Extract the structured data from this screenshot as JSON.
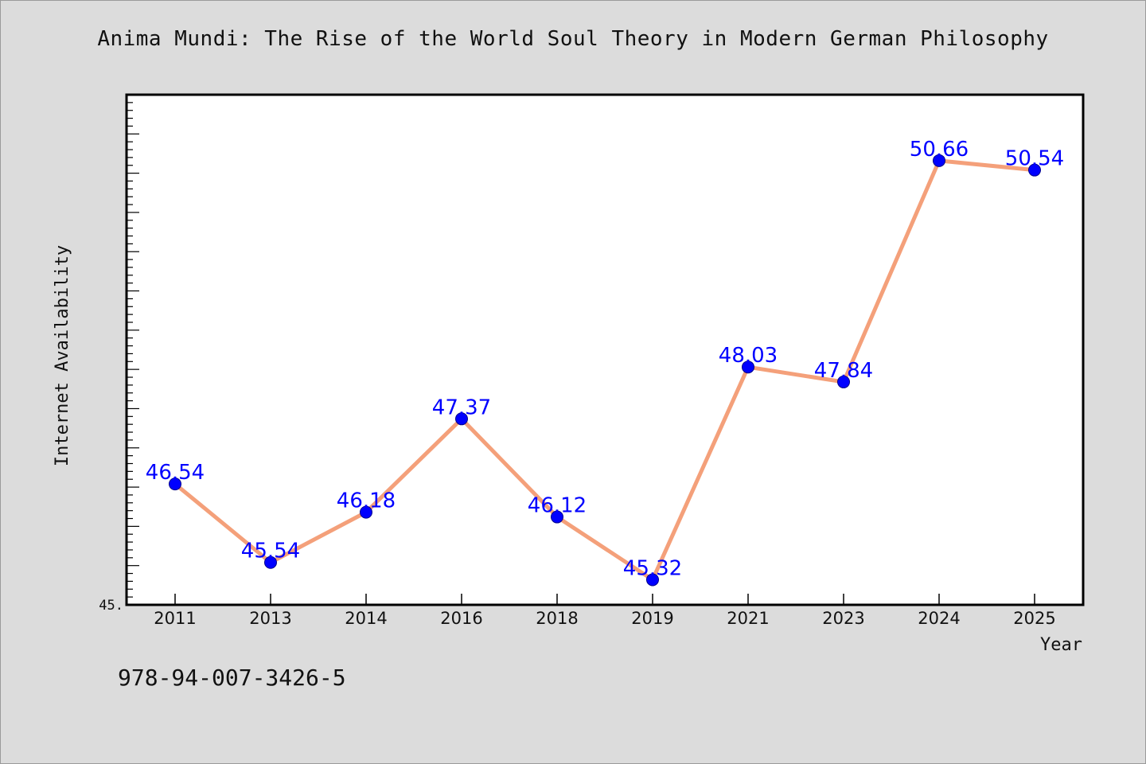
{
  "chart_data": {
    "type": "line",
    "title": "Anima Mundi: The Rise of the World Soul Theory in Modern German Philosophy",
    "xlabel": "Year",
    "ylabel": "Internet Availability",
    "categories": [
      "2011",
      "2013",
      "2014",
      "2016",
      "2018",
      "2019",
      "2021",
      "2023",
      "2024",
      "2025"
    ],
    "values": [
      46.54,
      45.54,
      46.18,
      47.37,
      46.12,
      45.32,
      48.03,
      47.84,
      50.66,
      50.54
    ],
    "data_labels": [
      "46.54",
      "45.54",
      "46.18",
      "47.37",
      "46.12",
      "45.32",
      "48.03",
      "47.84",
      "50.66",
      "50.54"
    ],
    "ylim": [
      45.0,
      51.5
    ],
    "y_tick_label": "45.",
    "grid": false,
    "line_color": "#f4a07a",
    "marker_color": "#0000ff",
    "label_color": "#0000ff"
  },
  "footer": {
    "isbn": "978-94-007-3426-5"
  }
}
